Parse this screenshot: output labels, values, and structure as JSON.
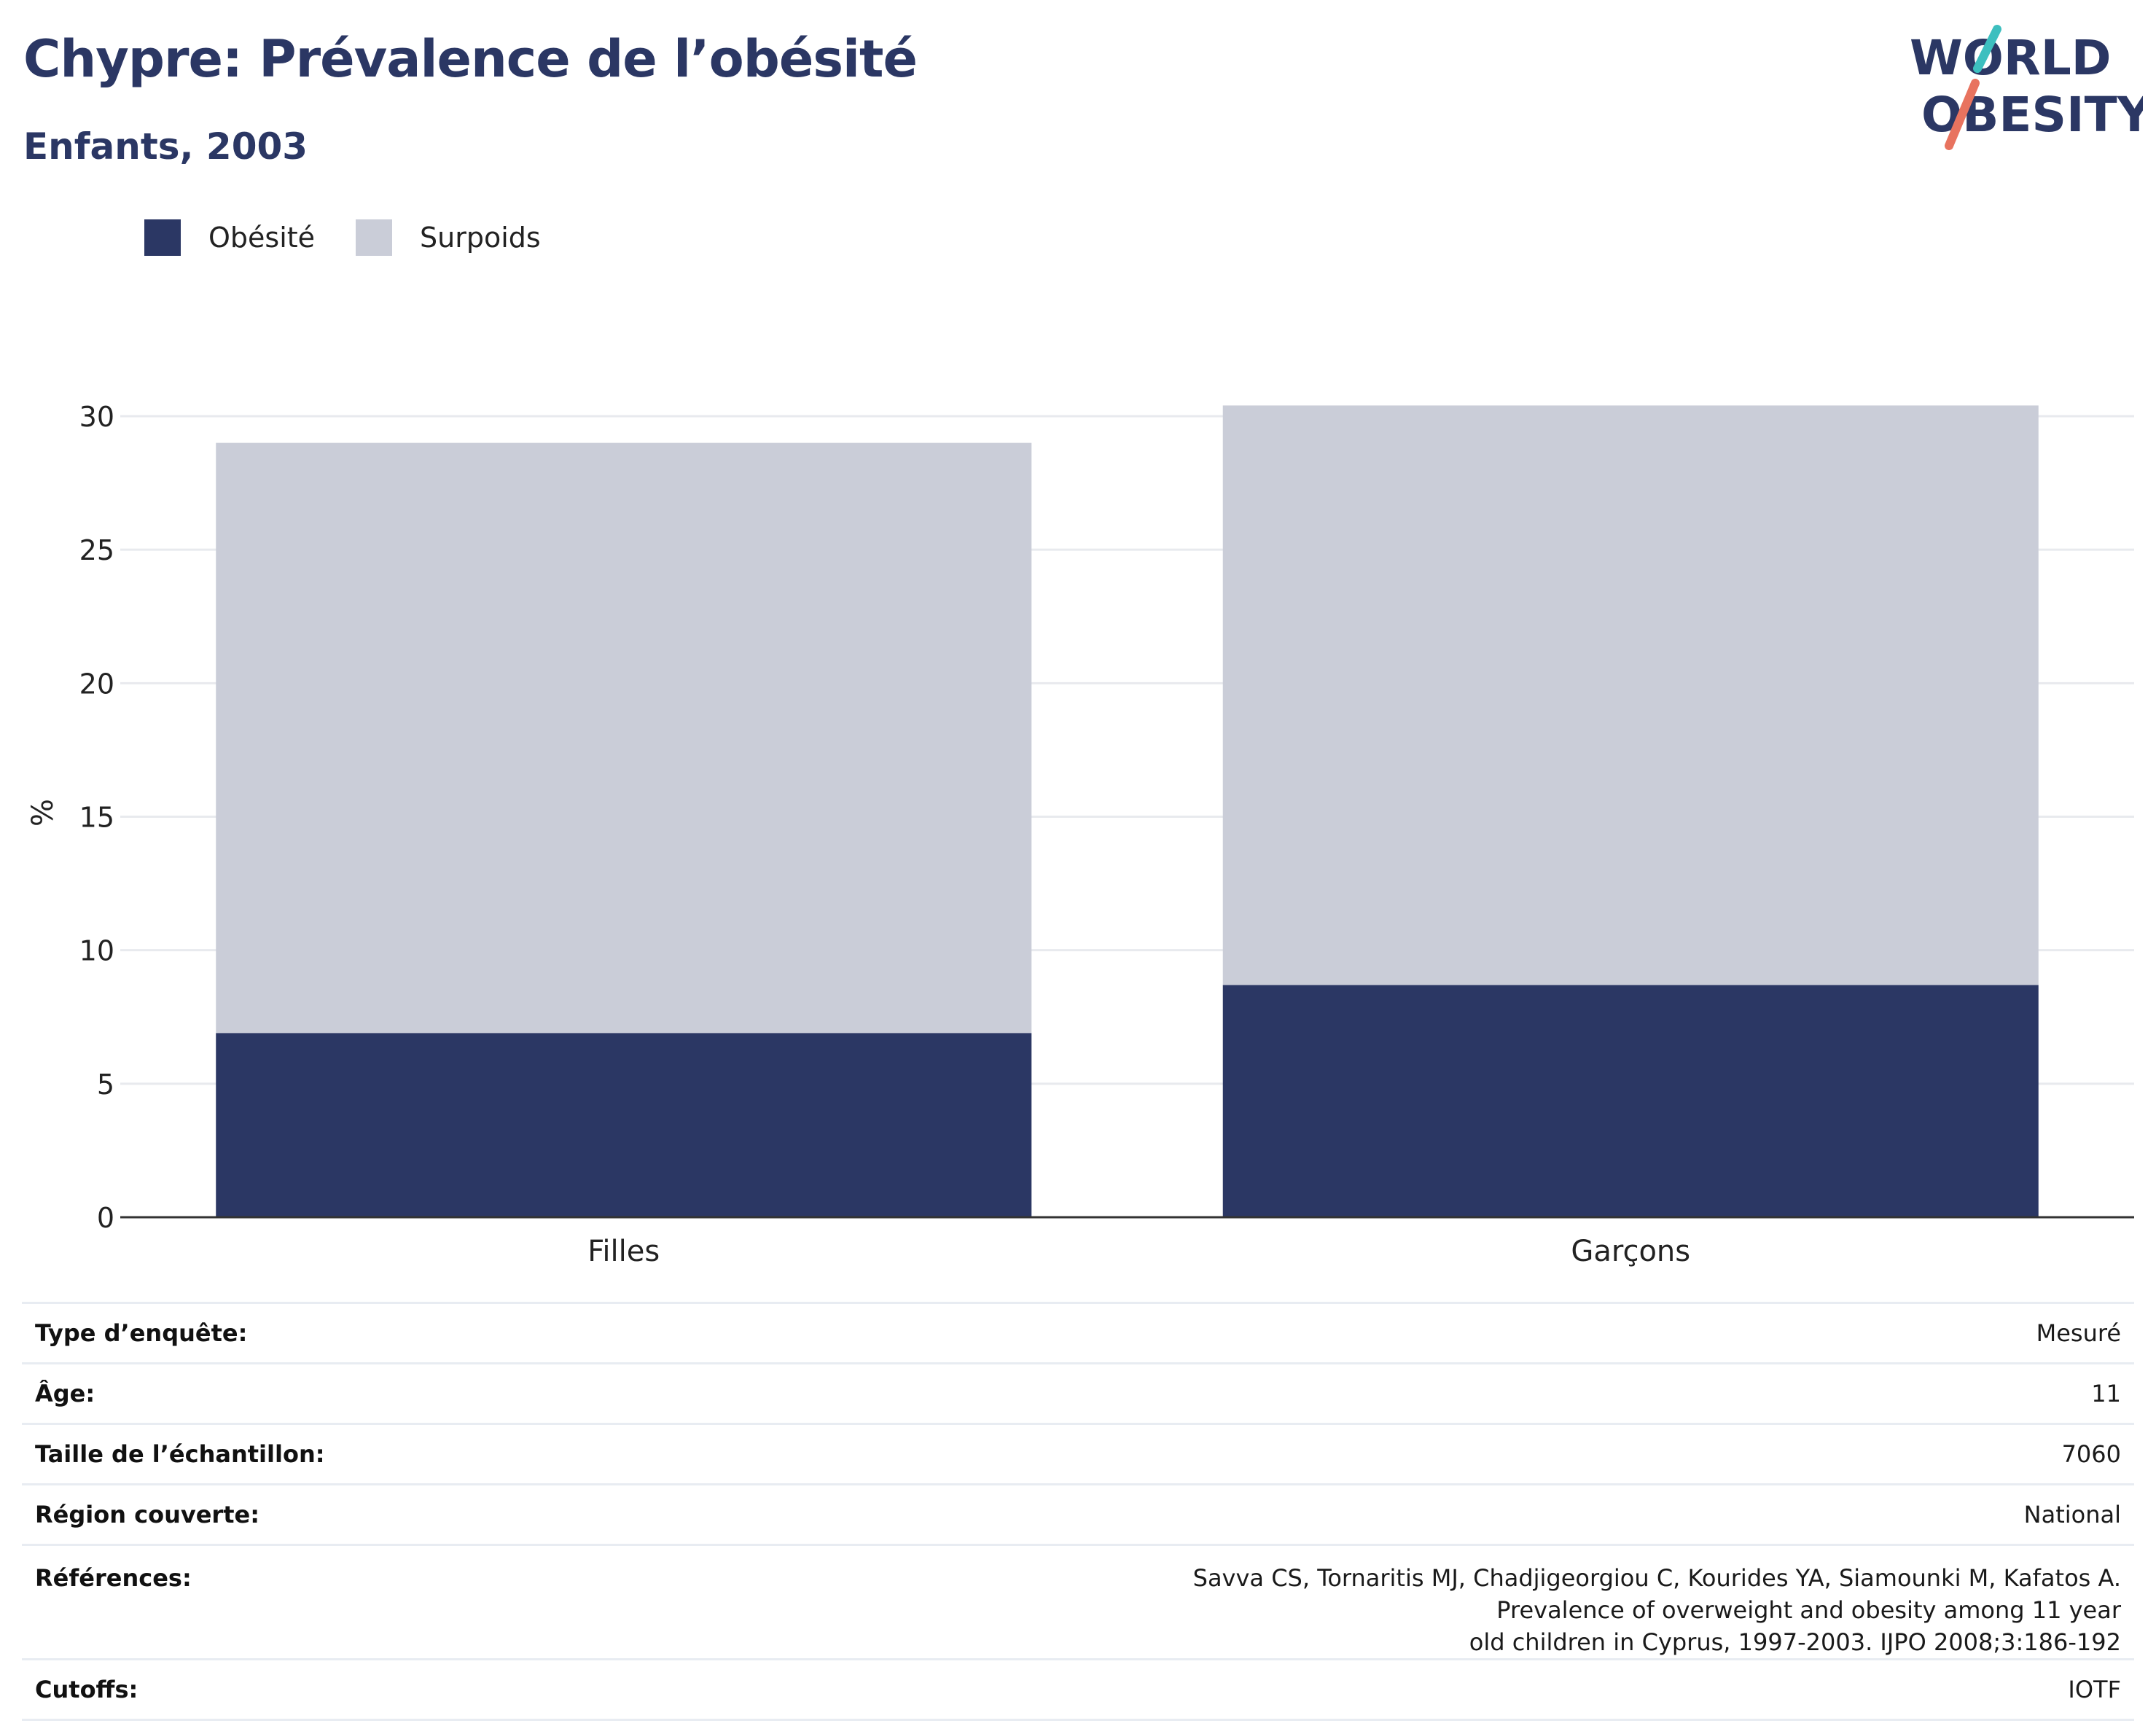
{
  "header": {
    "title": "Chypre: Prévalence de l’obésité",
    "subtitle": "Enfants, 2003"
  },
  "logo": {
    "line1": "WORLD",
    "line2": "OBESITY",
    "accent_teal": "#3dbfbf",
    "accent_coral": "#e8735f",
    "text_color": "#2b3764"
  },
  "legend": [
    {
      "label": "Obésité",
      "color": "#2b3764"
    },
    {
      "label": "Surpoids",
      "color": "#cacdd8"
    }
  ],
  "chart_data": {
    "type": "bar",
    "stacked": true,
    "categories": [
      "Filles",
      "Garçons"
    ],
    "series": [
      {
        "name": "Obésité",
        "color": "#2b3764",
        "values": [
          6.9,
          8.7
        ]
      },
      {
        "name": "Surpoids",
        "color": "#cacdd8",
        "values": [
          22.1,
          21.7
        ]
      }
    ],
    "title": "Chypre: Prévalence de l’obésité",
    "subtitle": "Enfants, 2003",
    "xlabel": "",
    "ylabel": "%",
    "ylim": [
      0,
      30.3
    ],
    "yticks": [
      0,
      5,
      10,
      15,
      20,
      25,
      30
    ],
    "grid": true,
    "legend_position": "top-left"
  },
  "info": [
    {
      "key": "Type d’enquête:",
      "value": "Mesuré"
    },
    {
      "key": "Âge:",
      "value": "11"
    },
    {
      "key": "Taille de l’échantillon:",
      "value": "7060"
    },
    {
      "key": "Région couverte:",
      "value": "National"
    },
    {
      "key": "Références:",
      "value_lines": [
        "Savva CS, Tornaritis MJ, Chadjigeorgiou C, Kourides YA, Siamounki M, Kafatos A. Prevalence of overweight and obesity among 11 year",
        "old children in Cyprus, 1997-2003. IJPO 2008;3:186-192"
      ]
    },
    {
      "key": "Cutoffs:",
      "value": "IOTF"
    }
  ]
}
